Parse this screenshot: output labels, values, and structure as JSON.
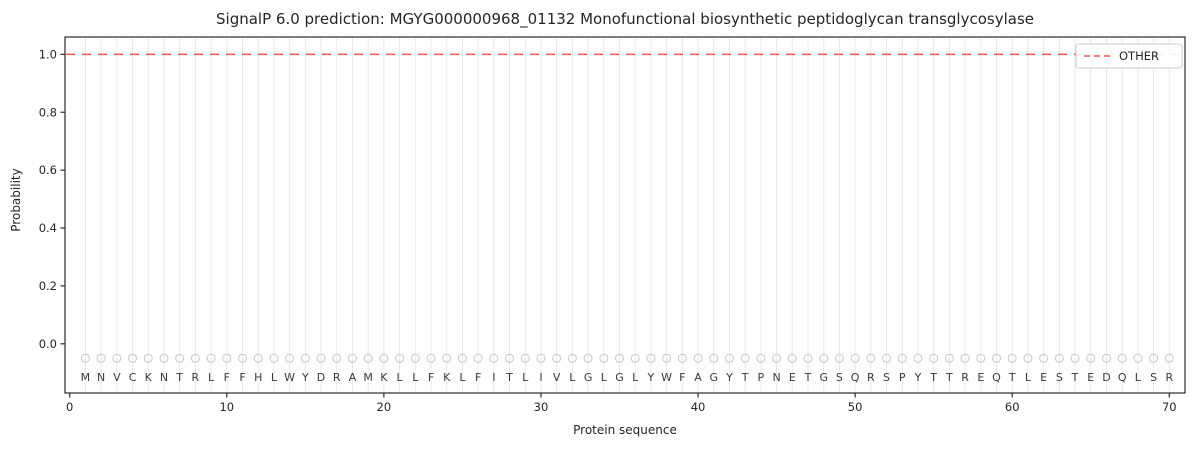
{
  "chart_data": {
    "type": "line",
    "title": "SignalP 6.0 prediction: MGYG000000968_01132 Monofunctional biosynthetic peptidoglycan transglycosylase",
    "xlabel": "Protein sequence",
    "ylabel": "Probability",
    "xlim": [
      -0.3,
      71
    ],
    "ylim": [
      -0.17,
      1.06
    ],
    "x_ticks": [
      0,
      10,
      20,
      30,
      40,
      50,
      60,
      70
    ],
    "y_ticks": [
      0.0,
      0.2,
      0.4,
      0.6,
      0.8,
      1.0
    ],
    "grid": {
      "vertical_per_residue": true,
      "horizontal": false
    },
    "legend": {
      "position": "upper right",
      "entries": [
        {
          "label": "OTHER",
          "line_style": "dashed",
          "color": "#e45757"
        }
      ]
    },
    "sequence": [
      "M",
      "N",
      "V",
      "C",
      "K",
      "N",
      "T",
      "R",
      "L",
      "F",
      "F",
      "H",
      "L",
      "W",
      "Y",
      "D",
      "R",
      "A",
      "M",
      "K",
      "L",
      "L",
      "F",
      "K",
      "L",
      "F",
      "I",
      "T",
      "L",
      "I",
      "V",
      "L",
      "G",
      "L",
      "G",
      "L",
      "Y",
      "W",
      "F",
      "A",
      "G",
      "Y",
      "T",
      "P",
      "N",
      "E",
      "T",
      "G",
      "S",
      "Q",
      "R",
      "S",
      "P",
      "Y",
      "T",
      "T",
      "R",
      "E",
      "Q",
      "T",
      "L",
      "E",
      "S",
      "T",
      "E",
      "D",
      "Q",
      "L",
      "S",
      "R"
    ],
    "series": [
      {
        "name": "OTHER",
        "line_style": "dashed",
        "color": "#e45757",
        "x_start": 1,
        "values": [
          1.0,
          1.0,
          1.0,
          1.0,
          1.0,
          1.0,
          1.0,
          1.0,
          1.0,
          1.0,
          1.0,
          1.0,
          1.0,
          1.0,
          1.0,
          1.0,
          1.0,
          1.0,
          1.0,
          1.0,
          1.0,
          1.0,
          1.0,
          1.0,
          1.0,
          1.0,
          1.0,
          1.0,
          1.0,
          1.0,
          1.0,
          1.0,
          1.0,
          1.0,
          1.0,
          1.0,
          1.0,
          1.0,
          1.0,
          1.0,
          1.0,
          1.0,
          1.0,
          1.0,
          1.0,
          1.0,
          1.0,
          1.0,
          1.0,
          1.0,
          1.0,
          1.0,
          1.0,
          1.0,
          1.0,
          1.0,
          1.0,
          1.0,
          1.0,
          1.0,
          1.0,
          1.0,
          1.0,
          1.0,
          1.0,
          1.0,
          1.0,
          1.0,
          1.0,
          1.0
        ]
      }
    ],
    "residue_markers": {
      "symbol": "open-circle",
      "y": -0.05
    },
    "colors": {
      "other_line": "#e45757",
      "grid": "#e9e9e9",
      "spine": "#2b2b2b",
      "marker": "#c6c6c6",
      "letter": "#3a3a3a",
      "tick_label": "#262626",
      "legend_border": "#cccccc"
    }
  }
}
